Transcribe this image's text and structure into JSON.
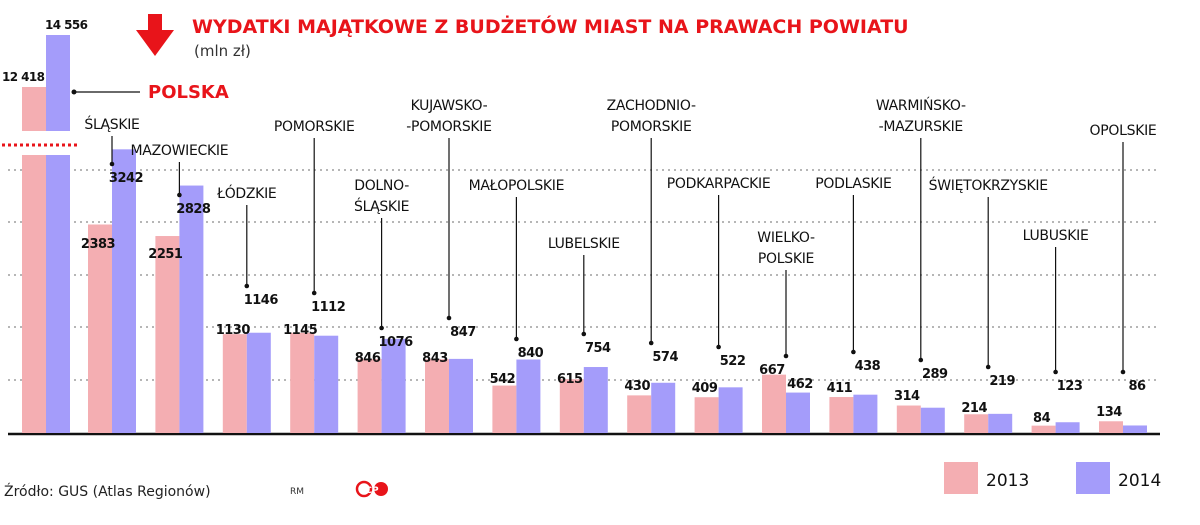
{
  "header": {
    "title": "WYDATKI MAJĄTKOWE Z BUDŻETÓW MIAST NA PRAWACH POWIATU",
    "subtitle": "(mln zł)"
  },
  "footer": {
    "source": "Źródło: GUS (Atlas Regionów)",
    "author": "RM",
    "logo_text": "CP"
  },
  "colors": {
    "series_2013": "#f4aeb2",
    "series_2014": "#a49cfa",
    "accent": "#e8141a",
    "grid": "#8a8a8a",
    "text": "#111111"
  },
  "chart_data": {
    "type": "bar",
    "title": "WYDATKI MAJĄTKOWE Z BUDŻETÓW MIAST NA PRAWACH POWIATU",
    "subtitle": "(mln zł)",
    "legend": {
      "placement": "bottom-right",
      "entries": [
        "2013",
        "2014"
      ]
    },
    "grid": true,
    "axis_break": true,
    "ylim": [
      0,
      3500
    ],
    "total": {
      "name": "POLSKA",
      "values": [
        12418,
        14556
      ],
      "labels": [
        "12 418",
        "14 556"
      ]
    },
    "categories": [
      {
        "name": "ŚLĄSKIE",
        "lines": [
          "ŚLĄSKIE"
        ],
        "values": [
          2383,
          3242
        ]
      },
      {
        "name": "MAZOWIECKIE",
        "lines": [
          "MAZOWIECKIE"
        ],
        "values": [
          2251,
          2828
        ]
      },
      {
        "name": "ŁÓDZKIE",
        "lines": [
          "ŁÓDZKIE"
        ],
        "values": [
          1130,
          1146
        ]
      },
      {
        "name": "POMORSKIE",
        "lines": [
          "POMORSKIE"
        ],
        "values": [
          1145,
          1112
        ]
      },
      {
        "name": "DOLNOŚLĄSKIE",
        "lines": [
          "DOLNO-",
          "ŚLĄSKIE"
        ],
        "values": [
          846,
          1076
        ]
      },
      {
        "name": "KUJAWSKO-POMORSKIE",
        "lines": [
          "KUJAWSKO-",
          "-POMORSKIE"
        ],
        "values": [
          843,
          847
        ]
      },
      {
        "name": "MAŁOPOLSKIE",
        "lines": [
          "MAŁOPOLSKIE"
        ],
        "values": [
          542,
          840
        ]
      },
      {
        "name": "LUBELSKIE",
        "lines": [
          "LUBELSKIE"
        ],
        "values": [
          615,
          754
        ]
      },
      {
        "name": "ZACHODNIOPOMORSKIE",
        "lines": [
          "ZACHODNIO-",
          "POMORSKIE"
        ],
        "values": [
          430,
          574
        ]
      },
      {
        "name": "PODKARPACKIE",
        "lines": [
          "PODKARPACKIE"
        ],
        "values": [
          409,
          522
        ]
      },
      {
        "name": "WIELKOPOLSKIE",
        "lines": [
          "WIELKO-",
          "POLSKIE"
        ],
        "values": [
          667,
          462
        ]
      },
      {
        "name": "PODLASKIE",
        "lines": [
          "PODLASKIE"
        ],
        "values": [
          411,
          438
        ]
      },
      {
        "name": "WARMIŃSKO-MAZURSKIE",
        "lines": [
          "WARMIŃSKO-",
          "-MAZURSKIE"
        ],
        "values": [
          314,
          289
        ]
      },
      {
        "name": "ŚWIĘTOKRZYSKIE",
        "lines": [
          "ŚWIĘTOKRZYSKIE"
        ],
        "values": [
          214,
          219
        ]
      },
      {
        "name": "LUBUSKIE",
        "lines": [
          "LUBUSKIE"
        ],
        "values": [
          84,
          123
        ]
      },
      {
        "name": "OPOLSKIE",
        "lines": [
          "OPOLSKIE"
        ],
        "values": [
          134,
          86
        ]
      }
    ]
  }
}
